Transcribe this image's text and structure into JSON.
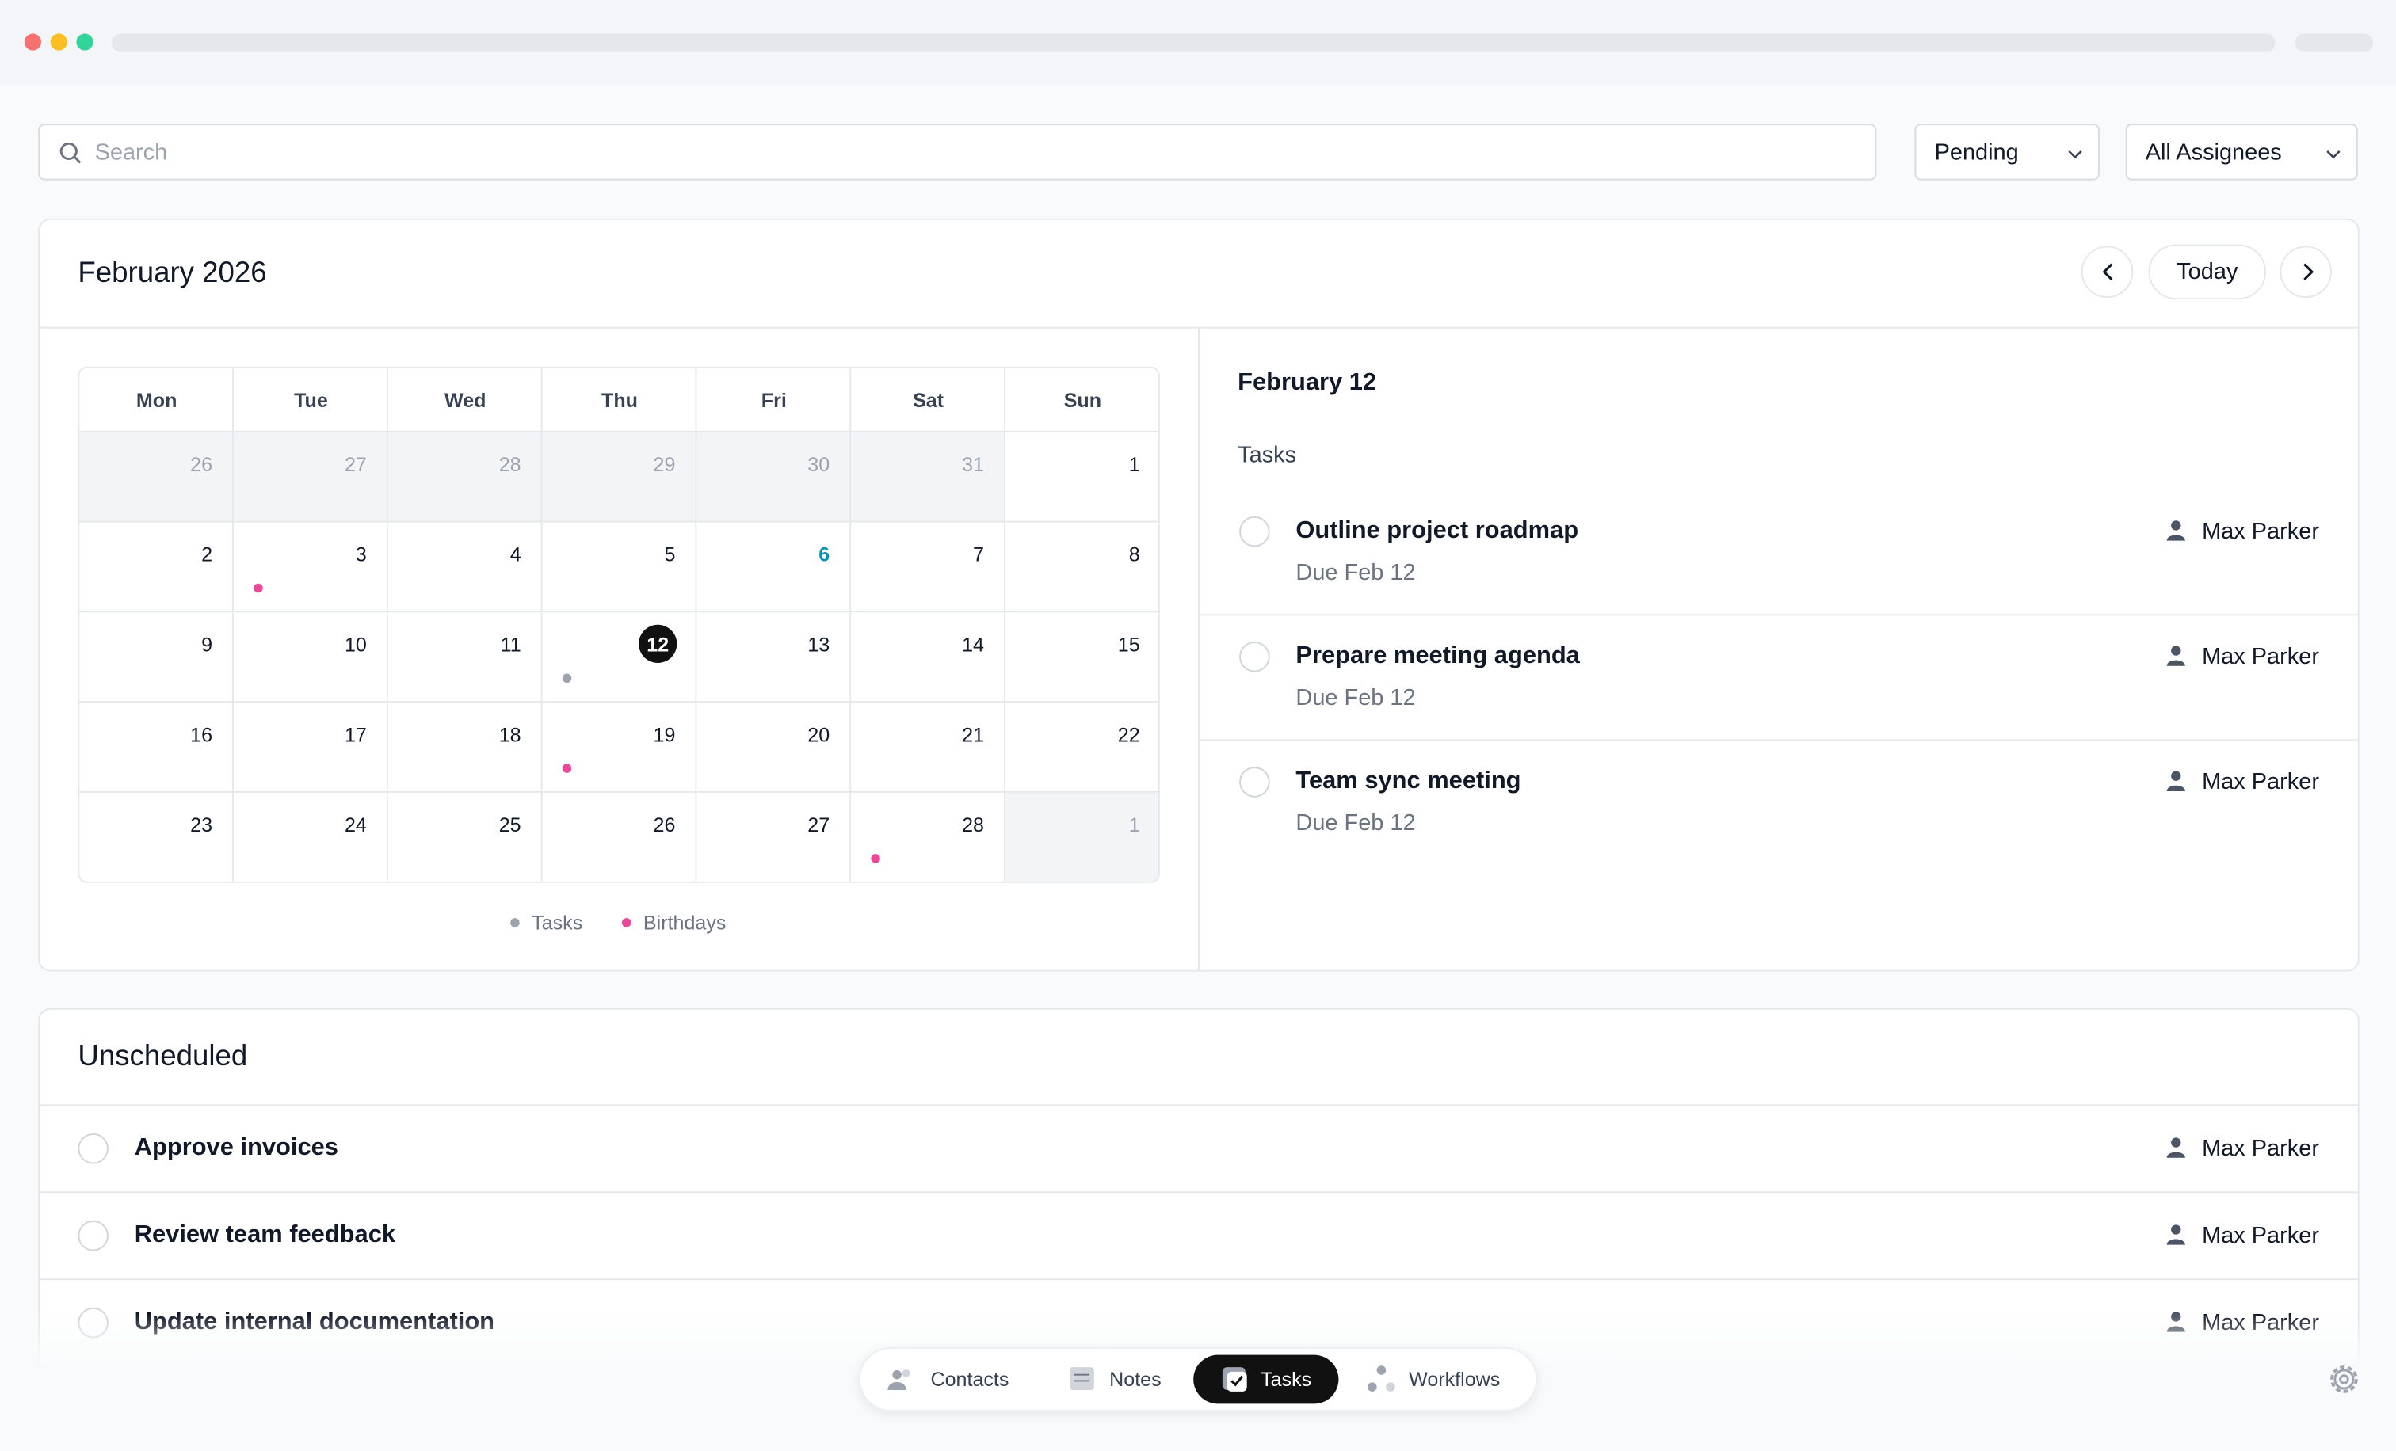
{
  "search_placeholder": "Search",
  "filters": [
    "Pending",
    "All Assignees"
  ],
  "calendar": {
    "title": "February 2026",
    "today_button": "Today",
    "weekdays": [
      "Mon",
      "Tue",
      "Wed",
      "Thu",
      "Fri",
      "Sat",
      "Sun"
    ],
    "weeks": [
      [
        {
          "day": 26,
          "outside": true
        },
        {
          "day": 27,
          "outside": true
        },
        {
          "day": 28,
          "outside": true
        },
        {
          "day": 29,
          "outside": true
        },
        {
          "day": 30,
          "outside": true
        },
        {
          "day": 31,
          "outside": true
        },
        {
          "day": 1
        }
      ],
      [
        {
          "day": 2
        },
        {
          "day": 3,
          "dot": "birthday"
        },
        {
          "day": 4
        },
        {
          "day": 5
        },
        {
          "day": 6,
          "accent": true
        },
        {
          "day": 7
        },
        {
          "day": 8
        }
      ],
      [
        {
          "day": 9
        },
        {
          "day": 10
        },
        {
          "day": 11
        },
        {
          "day": 12,
          "selected": true,
          "dot": "task"
        },
        {
          "day": 13
        },
        {
          "day": 14
        },
        {
          "day": 15
        }
      ],
      [
        {
          "day": 16
        },
        {
          "day": 17
        },
        {
          "day": 18
        },
        {
          "day": 19,
          "dot": "birthday"
        },
        {
          "day": 20
        },
        {
          "day": 21
        },
        {
          "day": 22
        }
      ],
      [
        {
          "day": 23
        },
        {
          "day": 24
        },
        {
          "day": 25
        },
        {
          "day": 26
        },
        {
          "day": 27
        },
        {
          "day": 28,
          "dot": "birthday"
        },
        {
          "day": 1,
          "outside": true
        }
      ]
    ],
    "legend": [
      {
        "label": "Tasks",
        "color": "#9ca3af"
      },
      {
        "label": "Birthdays",
        "color": "#ec4899"
      }
    ]
  },
  "selected_day": {
    "title": "February 12",
    "section": "Tasks",
    "tasks": [
      {
        "title": "Outline project roadmap",
        "due": "Due Feb 12",
        "assignee": "Max Parker"
      },
      {
        "title": "Prepare meeting agenda",
        "due": "Due Feb 12",
        "assignee": "Max Parker"
      },
      {
        "title": "Team sync meeting",
        "due": "Due Feb 12",
        "assignee": "Max Parker"
      }
    ]
  },
  "unscheduled": {
    "title": "Unscheduled",
    "tasks": [
      {
        "title": "Approve invoices",
        "assignee": "Max Parker"
      },
      {
        "title": "Review team feedback",
        "assignee": "Max Parker"
      },
      {
        "title": "Update internal documentation",
        "assignee": "Max Parker"
      }
    ]
  },
  "nav": {
    "items": [
      "Contacts",
      "Notes",
      "Tasks",
      "Workflows"
    ],
    "active": 2
  }
}
